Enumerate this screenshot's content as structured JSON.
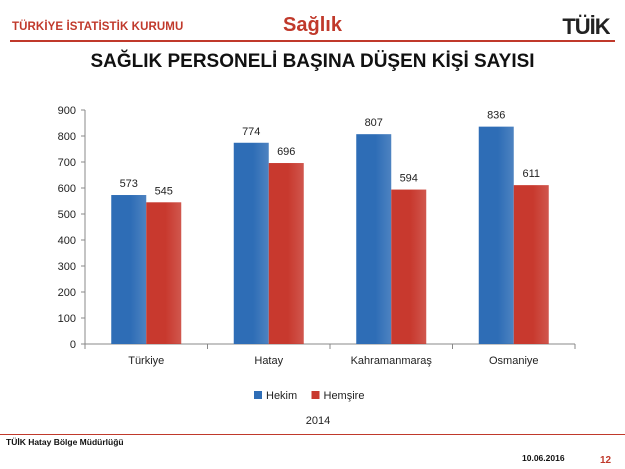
{
  "header": {
    "org_name": "TÜRKİYE İSTATİSTİK KURUMU",
    "section_title": "Sağlık",
    "logo_text": "TÜİK"
  },
  "footer": {
    "left_text": "TÜİK Hatay Bölge Müdürlüğü",
    "date": "10.06.2016",
    "page_number": "12"
  },
  "colors": {
    "accent": "#c0392b",
    "hekim": "#2e6db6",
    "hemsire": "#c8392e"
  },
  "chart_data": {
    "type": "bar",
    "title": "SAĞLIK PERSONELİ BAŞINA DÜŞEN  KİŞİ SAYISI",
    "categories": [
      "Türkiye",
      "Hatay",
      "Kahramanmaraş",
      "Osmaniye"
    ],
    "series": [
      {
        "name": "Hekim",
        "values": [
          573,
          774,
          807,
          836
        ],
        "color": "#2e6db6"
      },
      {
        "name": "Hemşire",
        "values": [
          545,
          696,
          594,
          611
        ],
        "color": "#c8392e"
      }
    ],
    "ylim": [
      0,
      900
    ],
    "yticks": [
      0,
      100,
      200,
      300,
      400,
      500,
      600,
      700,
      800,
      900
    ],
    "grid": false,
    "legend_position": "bottom",
    "xlabel": "2014",
    "ylabel": ""
  }
}
